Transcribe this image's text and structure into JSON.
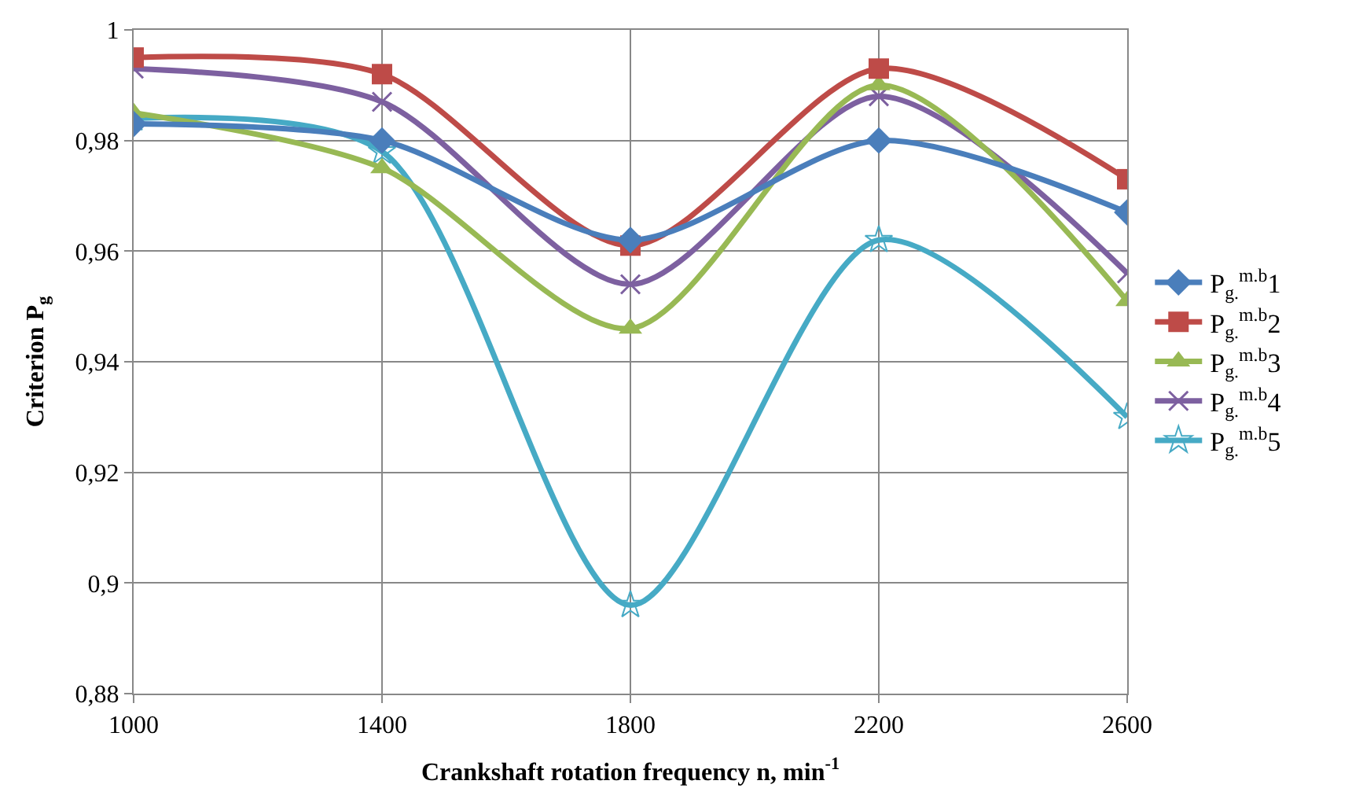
{
  "chart_data": {
    "type": "line",
    "xlabel": "Crankshaft rotation frequency n, min$^{-1}$",
    "ylabel": "Criterion P$_{g}$",
    "x": [
      1000,
      1400,
      1800,
      2200,
      2600
    ],
    "series": [
      {
        "name": "P$_{g.}$$^{m.b}$1",
        "color": "#4a7ebb",
        "marker": "diamond",
        "values": [
          0.983,
          0.98,
          0.962,
          0.98,
          0.967
        ]
      },
      {
        "name": "P$_{g.}$$^{m.b}$2",
        "color": "#be4b48",
        "marker": "square",
        "values": [
          0.995,
          0.992,
          0.961,
          0.993,
          0.973
        ]
      },
      {
        "name": "P$_{g.}$$^{m.b}$3",
        "color": "#98b954",
        "marker": "triangle",
        "values": [
          0.985,
          0.975,
          0.946,
          0.99,
          0.951
        ]
      },
      {
        "name": "P$_{g.}$$^{m.b}$4",
        "color": "#7d60a0",
        "marker": "cross",
        "values": [
          0.993,
          0.987,
          0.954,
          0.988,
          0.956
        ]
      },
      {
        "name": "P$_{g.}$$^{m.b}$5",
        "color": "#46aac5",
        "marker": "star",
        "values": [
          0.984,
          0.978,
          0.896,
          0.962,
          0.93
        ]
      }
    ],
    "xlim": [
      1000,
      2600
    ],
    "xticks": [
      1000,
      1400,
      1800,
      2200,
      2600
    ],
    "ylim": [
      0.88,
      1
    ],
    "yticks": [
      {
        "value": 0.88,
        "label": "0,88"
      },
      {
        "value": 0.9,
        "label": "0,9"
      },
      {
        "value": 0.92,
        "label": "0,92"
      },
      {
        "value": 0.94,
        "label": "0,94"
      },
      {
        "value": 0.96,
        "label": "0,96"
      },
      {
        "value": 0.98,
        "label": "0,98"
      },
      {
        "value": 1,
        "label": "1"
      }
    ],
    "grid": true,
    "legend": "right",
    "line_style": "solid"
  }
}
